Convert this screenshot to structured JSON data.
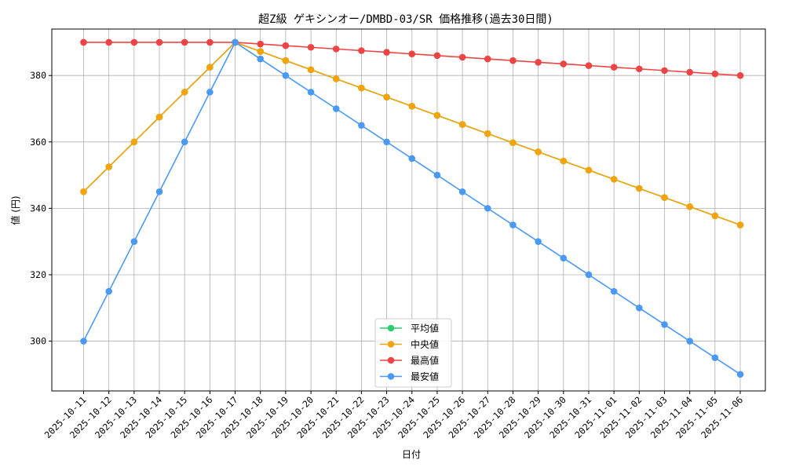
{
  "chart_data": {
    "type": "line",
    "title": "超Z級 ゲキシンオー/DMBD-03/SR 価格推移(過去30日間)",
    "xlabel": "日付",
    "ylabel": "値 (円)",
    "ylim": [
      285,
      394
    ],
    "yticks": [
      300,
      320,
      340,
      360,
      380
    ],
    "grid": true,
    "legend_position": "bottom-center",
    "categories": [
      "2025-10-11",
      "2025-10-12",
      "2025-10-13",
      "2025-10-14",
      "2025-10-15",
      "2025-10-16",
      "2025-10-17",
      "2025-10-18",
      "2025-10-19",
      "2025-10-20",
      "2025-10-21",
      "2025-10-22",
      "2025-10-23",
      "2025-10-24",
      "2025-10-25",
      "2025-10-26",
      "2025-10-27",
      "2025-10-28",
      "2025-10-29",
      "2025-10-30",
      "2025-10-31",
      "2025-11-01",
      "2025-11-02",
      "2025-11-03",
      "2025-11-04",
      "2025-11-05",
      "2025-11-06"
    ],
    "series": [
      {
        "name": "平均値",
        "color": "#2ecc71",
        "values": [
          345,
          352.5,
          360,
          367.5,
          375,
          382.5,
          390,
          387.25,
          384.5,
          381.75,
          379,
          376.25,
          373.5,
          370.75,
          368,
          365.25,
          362.5,
          359.75,
          357,
          354.25,
          351.5,
          348.75,
          346,
          343.25,
          340.5,
          337.75,
          335
        ]
      },
      {
        "name": "中央値",
        "color": "#f5a30a",
        "values": [
          345,
          352.5,
          360,
          367.5,
          375,
          382.5,
          390,
          387.25,
          384.5,
          381.75,
          379,
          376.25,
          373.5,
          370.75,
          368,
          365.25,
          362.5,
          359.75,
          357,
          354.25,
          351.5,
          348.75,
          346,
          343.25,
          340.5,
          337.75,
          335
        ]
      },
      {
        "name": "最高値",
        "color": "#ef4444",
        "values": [
          390,
          390,
          390,
          390,
          390,
          390,
          390,
          389.5,
          389,
          388.5,
          388,
          387.5,
          387,
          386.5,
          386,
          385.5,
          385,
          384.5,
          384,
          383.5,
          383,
          382.5,
          382,
          381.5,
          381,
          380.5,
          380
        ]
      },
      {
        "name": "最安値",
        "color": "#4a9af5",
        "values": [
          300,
          315,
          330,
          345,
          360,
          375,
          390,
          385,
          380,
          375,
          370,
          365,
          360,
          355,
          350,
          345,
          340,
          335,
          330,
          325,
          320,
          315,
          310,
          305,
          300,
          295,
          290
        ]
      }
    ]
  }
}
